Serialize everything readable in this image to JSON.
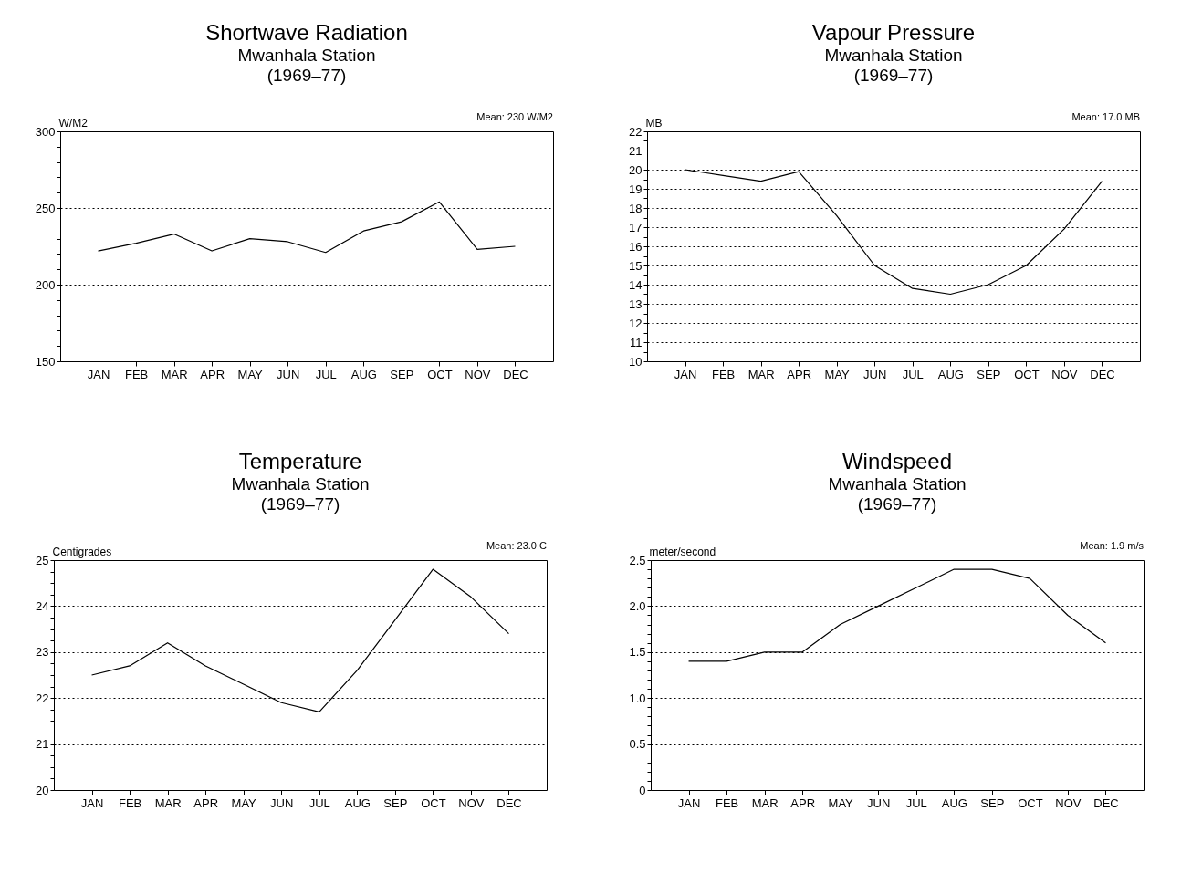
{
  "chart_data": [
    {
      "type": "line",
      "title": "Shortwave Radiation",
      "subtitle": "Mwanhala Station\n(1969–77)",
      "ylabel": "W/M2",
      "annotations": [
        "Mean: 230 W/M2"
      ],
      "categories": [
        "JAN",
        "FEB",
        "MAR",
        "APR",
        "MAY",
        "JUN",
        "JUL",
        "AUG",
        "SEP",
        "OCT",
        "NOV",
        "DEC"
      ],
      "series": [
        {
          "color": "#000000",
          "values": [
            222,
            227,
            233,
            222,
            230,
            228,
            221,
            235,
            241,
            254,
            223,
            225
          ]
        }
      ],
      "ylim": [
        150,
        300
      ],
      "yticks": [
        150,
        {
          "value": 160,
          "label": null
        },
        {
          "value": 170,
          "label": null
        },
        {
          "value": 180,
          "label": null
        },
        {
          "value": 190,
          "label": null
        },
        200,
        {
          "value": 210,
          "label": null
        },
        {
          "value": 220,
          "label": null
        },
        {
          "value": 230,
          "label": null
        },
        {
          "value": 240,
          "label": null
        },
        250,
        {
          "value": 260,
          "label": null
        },
        {
          "value": 270,
          "label": null
        },
        {
          "value": 280,
          "label": null
        },
        {
          "value": 290,
          "label": null
        },
        300
      ],
      "grid": "y",
      "marker": "none",
      "line_style": "solid"
    },
    {
      "type": "line",
      "title": "Vapour Pressure",
      "subtitle": "Mwanhala Station\n(1969–77)",
      "ylabel": "MB",
      "annotations": [
        "Mean: 17.0 MB"
      ],
      "categories": [
        "JAN",
        "FEB",
        "MAR",
        "APR",
        "MAY",
        "JUN",
        "JUL",
        "AUG",
        "SEP",
        "OCT",
        "NOV",
        "DEC"
      ],
      "series": [
        {
          "color": "#000000",
          "values": [
            20.0,
            19.7,
            19.4,
            19.9,
            17.6,
            15.0,
            13.8,
            13.5,
            14.0,
            15.0,
            16.9,
            19.4
          ]
        }
      ],
      "ylim": [
        10,
        22
      ],
      "yticks": [
        10,
        {
          "value": 10.5,
          "label": null
        },
        11,
        {
          "value": 11.5,
          "label": null
        },
        12,
        {
          "value": 12.5,
          "label": null
        },
        13,
        {
          "value": 13.5,
          "label": null
        },
        14,
        {
          "value": 14.5,
          "label": null
        },
        15,
        {
          "value": 15.5,
          "label": null
        },
        16,
        {
          "value": 16.5,
          "label": null
        },
        17,
        {
          "value": 17.5,
          "label": null
        },
        18,
        {
          "value": 18.5,
          "label": null
        },
        19,
        {
          "value": 19.5,
          "label": null
        },
        20,
        {
          "value": 20.5,
          "label": null
        },
        21,
        {
          "value": 21.5,
          "label": null
        },
        22
      ],
      "grid": "y",
      "marker": "none",
      "line_style": "solid"
    },
    {
      "type": "line",
      "title": "Temperature",
      "subtitle": "Mwanhala Station\n(1969–77)",
      "ylabel": "Centigrades",
      "annotations": [
        "Mean: 23.0 C"
      ],
      "categories": [
        "JAN",
        "FEB",
        "MAR",
        "APR",
        "MAY",
        "JUN",
        "JUL",
        "AUG",
        "SEP",
        "OCT",
        "NOV",
        "DEC"
      ],
      "series": [
        {
          "color": "#000000",
          "values": [
            22.5,
            22.7,
            23.2,
            22.7,
            22.3,
            21.9,
            21.7,
            22.6,
            23.7,
            24.8,
            24.2,
            23.4
          ]
        }
      ],
      "ylim": [
        20,
        25
      ],
      "yticks": [
        20,
        {
          "value": 20.25,
          "label": null
        },
        {
          "value": 20.5,
          "label": null
        },
        {
          "value": 20.75,
          "label": null
        },
        21,
        {
          "value": 21.25,
          "label": null
        },
        {
          "value": 21.5,
          "label": null
        },
        {
          "value": 21.75,
          "label": null
        },
        22,
        {
          "value": 22.25,
          "label": null
        },
        {
          "value": 22.5,
          "label": null
        },
        {
          "value": 22.75,
          "label": null
        },
        23,
        {
          "value": 23.25,
          "label": null
        },
        {
          "value": 23.5,
          "label": null
        },
        {
          "value": 23.75,
          "label": null
        },
        24,
        {
          "value": 24.25,
          "label": null
        },
        {
          "value": 24.5,
          "label": null
        },
        {
          "value": 24.75,
          "label": null
        },
        25
      ],
      "grid": "y",
      "marker": "none",
      "line_style": "solid"
    },
    {
      "type": "line",
      "title": "Windspeed",
      "subtitle": "Mwanhala Station\n(1969–77)",
      "ylabel": "meter/second",
      "annotations": [
        "Mean: 1.9 m/s"
      ],
      "categories": [
        "JAN",
        "FEB",
        "MAR",
        "APR",
        "MAY",
        "JUN",
        "JUL",
        "AUG",
        "SEP",
        "OCT",
        "NOV",
        "DEC"
      ],
      "series": [
        {
          "color": "#000000",
          "values": [
            1.4,
            1.4,
            1.5,
            1.5,
            1.8,
            2.0,
            2.2,
            2.4,
            2.4,
            2.3,
            1.9,
            1.6
          ]
        }
      ],
      "ylim": [
        0,
        2.5
      ],
      "yticks": [
        {
          "value": 0,
          "label": "0"
        },
        {
          "value": 0.1,
          "label": null
        },
        {
          "value": 0.2,
          "label": null
        },
        {
          "value": 0.3,
          "label": null
        },
        {
          "value": 0.4,
          "label": null
        },
        0.5,
        {
          "value": 0.6,
          "label": null
        },
        {
          "value": 0.7,
          "label": null
        },
        {
          "value": 0.8,
          "label": null
        },
        {
          "value": 0.9,
          "label": null
        },
        {
          "value": 1,
          "label": "1.0"
        },
        {
          "value": 1.1,
          "label": null
        },
        {
          "value": 1.2,
          "label": null
        },
        {
          "value": 1.3,
          "label": null
        },
        {
          "value": 1.4,
          "label": null
        },
        1.5,
        {
          "value": 1.6,
          "label": null
        },
        {
          "value": 1.7,
          "label": null
        },
        {
          "value": 1.8,
          "label": null
        },
        {
          "value": 1.9,
          "label": null
        },
        {
          "value": 2,
          "label": "2.0"
        },
        {
          "value": 2.1,
          "label": null
        },
        {
          "value": 2.2,
          "label": null
        },
        {
          "value": 2.3,
          "label": null
        },
        {
          "value": 2.4,
          "label": null
        },
        2.5
      ],
      "grid": "y",
      "marker": "none",
      "line_style": "solid"
    }
  ]
}
